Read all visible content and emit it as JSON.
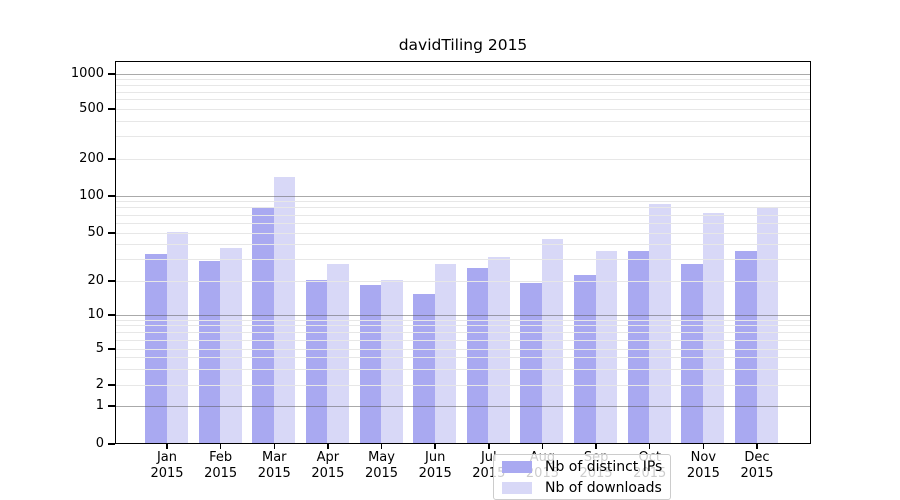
{
  "chart_data": {
    "type": "bar",
    "title": "davidTiling 2015",
    "categories": [
      "Jan",
      "Feb",
      "Mar",
      "Apr",
      "May",
      "Jun",
      "Jul",
      "Aug",
      "Sep",
      "Oct",
      "Nov",
      "Dec"
    ],
    "category_year": "2015",
    "series": [
      {
        "name": "Nb of distinct IPs",
        "color": "#a9a9f1",
        "values": [
          33,
          29,
          80,
          20,
          18,
          15,
          25,
          19,
          22,
          35,
          27,
          35
        ]
      },
      {
        "name": "Nb of downloads",
        "color": "#d8d8f7",
        "values": [
          50,
          37,
          140,
          27,
          20,
          27,
          31,
          44,
          35,
          85,
          72,
          80
        ]
      }
    ],
    "y_axis": {
      "ticks": [
        0,
        1,
        2,
        5,
        10,
        20,
        50,
        100,
        200,
        500,
        1000
      ],
      "scale": "log-like (0 at baseline)",
      "range": [
        0,
        1300
      ],
      "major_grid_at": [
        1,
        10,
        100,
        1000
      ]
    },
    "legend": {
      "position": "lower center",
      "entries": [
        "Nb of distinct IPs",
        "Nb of downloads"
      ]
    },
    "grid": true,
    "xlabel": "",
    "ylabel": ""
  }
}
